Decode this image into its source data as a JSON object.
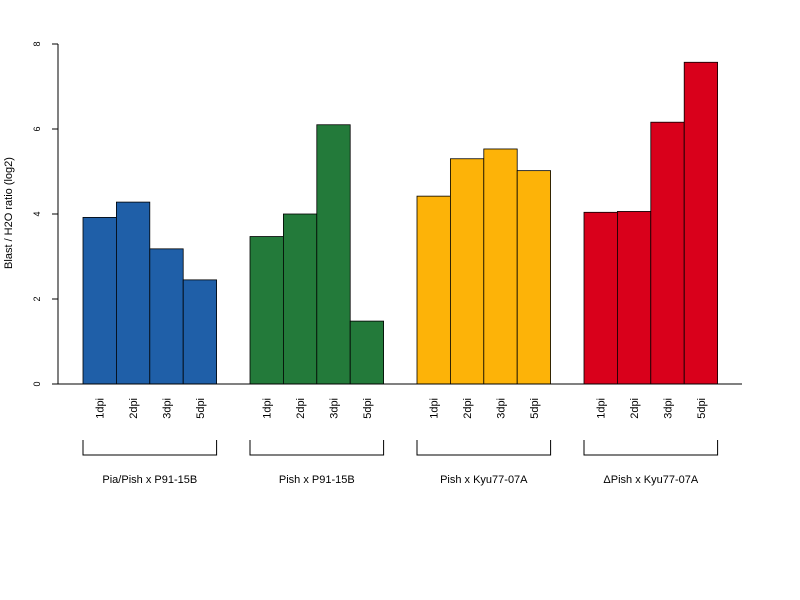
{
  "chart_data": {
    "type": "bar",
    "title": "",
    "xlabel": "",
    "ylabel": "Blast / H2O ratio (log2)",
    "ylim": [
      0,
      8
    ],
    "yticks": [
      0,
      2,
      4,
      6,
      8
    ],
    "grid": false,
    "legend": "none",
    "categories": [
      "1dpi",
      "2dpi",
      "3dpi",
      "5dpi"
    ],
    "groups": [
      {
        "name": "Pia/Pish x P91-15B",
        "color": "#1f5fa8",
        "values": [
          3.92,
          4.28,
          3.18,
          2.45
        ]
      },
      {
        "name": "Pish x P91-15B",
        "color": "#237a3a",
        "values": [
          3.47,
          4.0,
          6.1,
          1.48
        ]
      },
      {
        "name": "Pish x Kyu77-07A",
        "color": "#fdb308",
        "values": [
          4.42,
          5.3,
          5.53,
          5.02
        ]
      },
      {
        "name": "ΔPish x Kyu77-07A",
        "color": "#d9001b",
        "values": [
          4.04,
          4.06,
          6.16,
          7.57
        ]
      }
    ]
  }
}
